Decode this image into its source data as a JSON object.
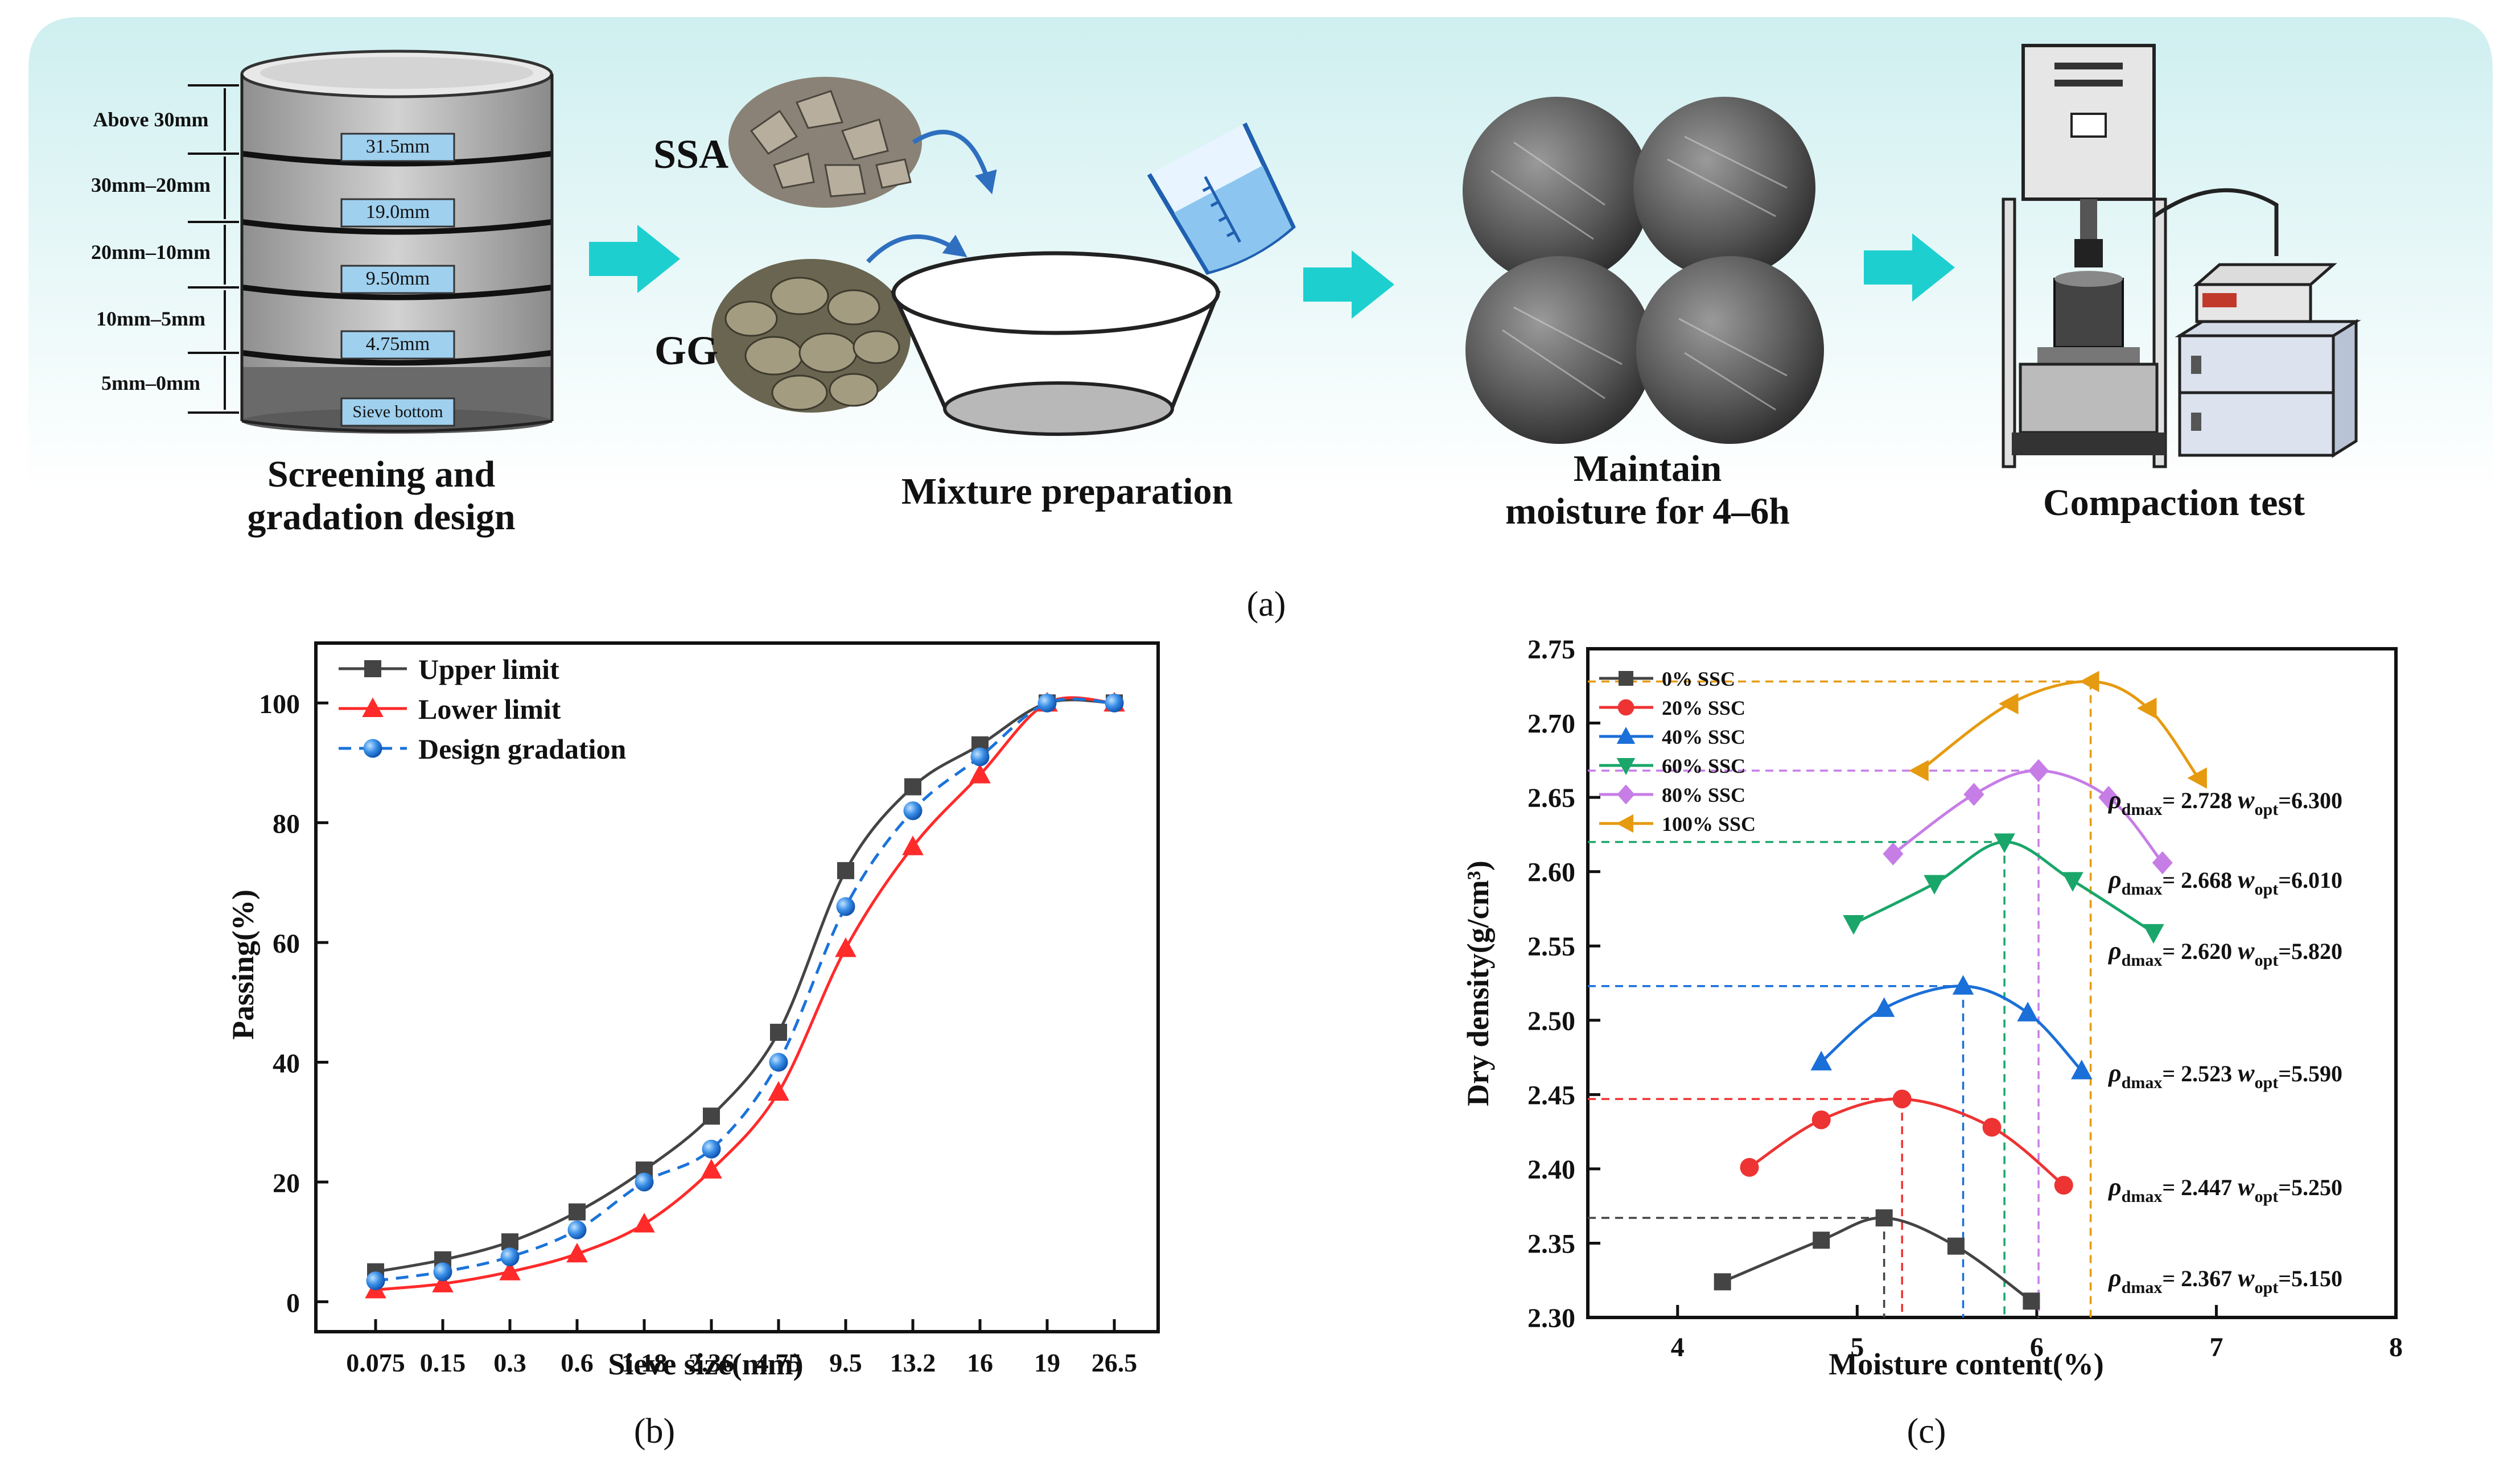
{
  "panel_a": {
    "label": "(a)",
    "sieve_ranges": [
      "Above 30mm",
      "30mm–20mm",
      "20mm–10mm",
      "10mm–5mm",
      "5mm–0mm"
    ],
    "sieve_sizes": [
      "31.5mm",
      "19.0mm",
      "9.50mm",
      "4.75mm",
      "Sieve bottom"
    ],
    "step1_line1": "Screening and",
    "step1_line2": "gradation design",
    "ssa_label": "SSA",
    "gg_label": "GG",
    "step2": "Mixture preparation",
    "step3_line1": "Maintain",
    "step3_line2": "moisture for 4–6h",
    "step4": "Compaction test",
    "colors": {
      "banner": "#dff5f5",
      "arrow": "#1ecfd0",
      "curve_arrow": "#2f6fbf"
    }
  },
  "panel_b": {
    "label": "(b)",
    "chart_data": {
      "type": "line",
      "xlabel": "Sieve size(mm)",
      "ylabel": "Passing(%)",
      "categories": [
        "0.075",
        "0.15",
        "0.3",
        "0.6",
        "1.18",
        "2.36",
        "4.75",
        "9.5",
        "13.2",
        "16",
        "19",
        "26.5"
      ],
      "ylim": [
        -5,
        110
      ],
      "yticks": [
        0,
        20,
        40,
        60,
        80,
        100
      ],
      "x_positions": [
        0,
        1,
        2,
        3,
        4,
        5,
        6,
        7,
        8,
        9,
        10,
        11
      ],
      "series": [
        {
          "name": "Upper limit",
          "color": "#444444",
          "marker": "square",
          "dash": "solid",
          "x": [
            0,
            1,
            2,
            3,
            4,
            5,
            6,
            7,
            8,
            9,
            10,
            11
          ],
          "values": [
            5,
            7,
            10,
            15,
            22,
            31,
            45,
            72,
            86,
            93,
            100,
            100
          ]
        },
        {
          "name": "Lower limit",
          "color": "#ff2a2a",
          "marker": "triangle",
          "dash": "solid",
          "x": [
            0,
            1,
            2,
            3,
            4,
            5,
            6,
            7,
            8,
            9,
            10,
            11
          ],
          "values": [
            2,
            3,
            5,
            8,
            13,
            22,
            35,
            59,
            76,
            88,
            100,
            100
          ]
        },
        {
          "name": "Design gradation",
          "color": "#1a73d9",
          "marker": "circle",
          "dash": "dashed",
          "x": [
            0,
            1,
            2,
            3,
            4,
            5,
            6,
            7,
            8,
            9,
            10,
            11
          ],
          "values": [
            3.5,
            5,
            7.5,
            12,
            20,
            25.5,
            40,
            66,
            82,
            91,
            100,
            100
          ]
        }
      ]
    }
  },
  "panel_c": {
    "label": "(c)",
    "chart_data": {
      "type": "line",
      "xlabel": "Moisture content(%)",
      "ylabel": "Dry density(g/cm³)",
      "xlim": [
        3.5,
        8
      ],
      "ylim": [
        2.3,
        2.75
      ],
      "xticks": [
        4,
        5,
        6,
        7,
        8
      ],
      "yticks": [
        2.3,
        2.35,
        2.4,
        2.45,
        2.5,
        2.55,
        2.6,
        2.65,
        2.7,
        2.75
      ],
      "ytick_labels": [
        "2.30",
        "2.35",
        "2.40",
        "2.45",
        "2.50",
        "2.55",
        "2.60",
        "2.65",
        "2.70",
        "2.75"
      ],
      "series": [
        {
          "name": "0% SSC",
          "color": "#444444",
          "marker": "square",
          "x": [
            4.25,
            4.8,
            5.15,
            5.55,
            5.97
          ],
          "values": [
            2.324,
            2.352,
            2.367,
            2.348,
            2.311
          ],
          "rho": "2.367",
          "w": "5.150",
          "peak_x": 5.15,
          "peak_y": 2.367
        },
        {
          "name": "20% SSC",
          "color": "#ee3333",
          "marker": "circle",
          "x": [
            4.4,
            4.8,
            5.25,
            5.75,
            6.15
          ],
          "values": [
            2.401,
            2.433,
            2.447,
            2.428,
            2.389
          ],
          "rho": "2.447",
          "w": "5.250",
          "peak_x": 5.25,
          "peak_y": 2.447
        },
        {
          "name": "40% SSC",
          "color": "#1a6fd8",
          "marker": "triangle",
          "x": [
            4.8,
            5.15,
            5.59,
            5.95,
            6.25
          ],
          "values": [
            2.472,
            2.508,
            2.523,
            2.505,
            2.466
          ],
          "rho": "2.523",
          "w": "5.590",
          "peak_x": 5.59,
          "peak_y": 2.523
        },
        {
          "name": "60% SSC",
          "color": "#1aa66a",
          "marker": "triangle-down",
          "x": [
            4.98,
            5.43,
            5.82,
            6.2,
            6.65
          ],
          "values": [
            2.565,
            2.592,
            2.62,
            2.594,
            2.559
          ],
          "rho": "2.620",
          "w": "5.820",
          "peak_x": 5.82,
          "peak_y": 2.62
        },
        {
          "name": "80% SSC",
          "color": "#c77de6",
          "marker": "diamond",
          "x": [
            5.2,
            5.65,
            6.01,
            6.4,
            6.7
          ],
          "values": [
            2.612,
            2.652,
            2.668,
            2.65,
            2.606
          ],
          "rho": "2.668",
          "w": "6.010",
          "peak_x": 6.01,
          "peak_y": 2.668
        },
        {
          "name": "100% SSC",
          "color": "#e69a10",
          "marker": "triangle-left",
          "x": [
            5.35,
            5.85,
            6.3,
            6.62,
            6.9
          ],
          "values": [
            2.668,
            2.713,
            2.728,
            2.71,
            2.663
          ],
          "rho": "2.728",
          "w": "6.300",
          "peak_x": 6.3,
          "peak_y": 2.728
        }
      ],
      "annotation_rho_symbol": "ρ",
      "annotation_rho_sub": "dmax",
      "annotation_w_symbol": "w",
      "annotation_w_sub": "opt"
    }
  }
}
